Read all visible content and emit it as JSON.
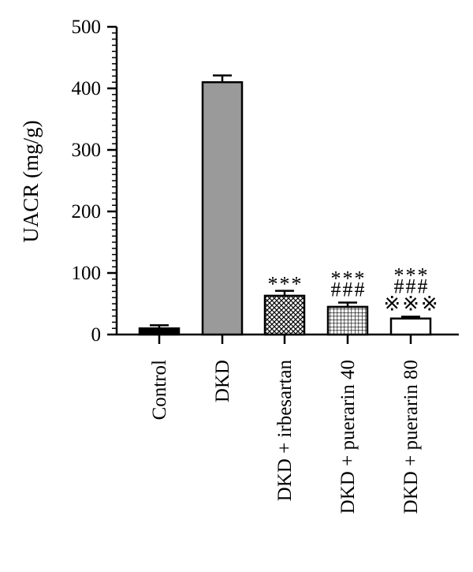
{
  "chart_data": {
    "type": "bar",
    "ylabel": "UACR (mg/g)",
    "xlabel": "",
    "ylim": [
      0,
      500
    ],
    "yticks": [
      "0",
      "100",
      "200",
      "300",
      "400",
      "500"
    ],
    "categories": [
      "Control",
      "DKD",
      "DKD + irbesartan",
      "DKD + puerarin 40",
      "DKD + puerarin 80"
    ],
    "values": [
      10,
      410,
      63,
      45,
      26
    ],
    "errors": [
      5,
      11,
      8,
      7,
      3
    ],
    "bar_fills": [
      "solid-black",
      "solid-gray",
      "crosshatch",
      "grid",
      "white"
    ],
    "annotations": [
      [],
      [],
      [
        "***"
      ],
      [
        "***",
        "###"
      ],
      [
        "***",
        "###",
        "※※※"
      ]
    ]
  },
  "colors": {
    "black": "#000000",
    "gray": "#9a9a9a",
    "white": "#ffffff"
  }
}
